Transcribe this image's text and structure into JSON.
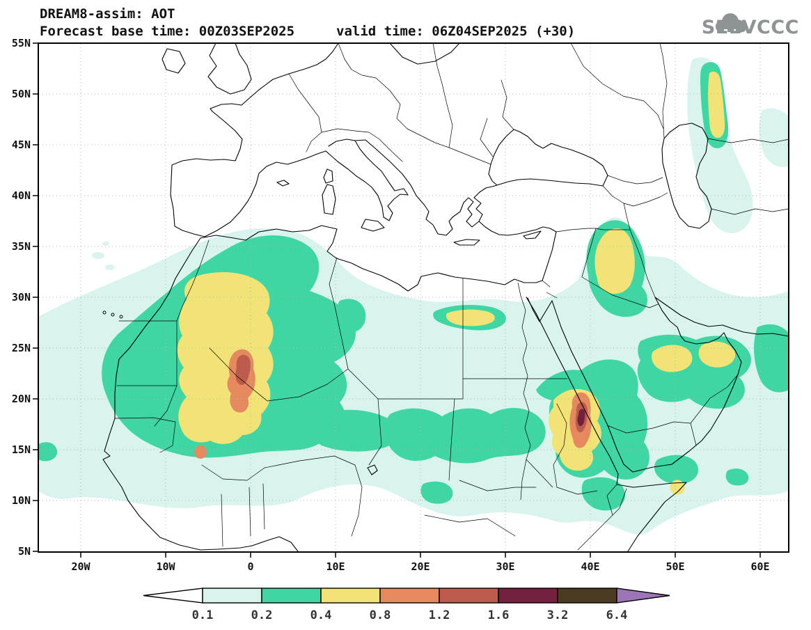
{
  "header": {
    "title": "DREAM8-assim: AOT",
    "base_time_label": "Forecast base time: 00Z03SEP2025",
    "valid_time_label": "valid time: 06Z04SEP2025 (+30)",
    "logo_text": "SEEVCCC"
  },
  "chart_data": {
    "type": "heatmap",
    "title": "DREAM8-assim: AOT",
    "model": "DREAM8-assim",
    "variable": "AOT",
    "forecast_base_time": "00Z03SEP2025",
    "valid_time": "06Z04SEP2025",
    "lead": "+30",
    "grid": "dotted",
    "legend_position": "bottom",
    "x_ticks": [
      "20W",
      "10W",
      "0",
      "10E",
      "20E",
      "30E",
      "40E",
      "50E",
      "60E"
    ],
    "y_ticks": [
      "55N",
      "50N",
      "45N",
      "40N",
      "35N",
      "30N",
      "25N",
      "20N",
      "15N",
      "10N",
      "5N"
    ],
    "lon_range_deg": [
      -25,
      63.5
    ],
    "lat_range_deg": [
      5,
      55
    ],
    "colorbar": {
      "levels": [
        "0.1",
        "0.2",
        "0.4",
        "0.8",
        "1.2",
        "1.6",
        "3.2",
        "6.4"
      ],
      "colors": [
        "#ffffff",
        "#d9f3ef",
        "#3fd6a4",
        "#f2e376",
        "#e48a5e",
        "#bb5c4d",
        "#73203e",
        "#4b3b23",
        "#9d74b5"
      ]
    },
    "features": [
      {
        "name": "West Africa / southern Algeria dust plume",
        "approx_center": "20N 4W",
        "max_band": "1.2-1.6"
      },
      {
        "name": "Sudan - Eritrea - Ethiopia / Red Sea plume",
        "approx_center": "16N 38E",
        "max_band": "1.6-3.2"
      },
      {
        "name": "Iraq / Mesopotamia plume",
        "approx_center": "33N 44E",
        "max_band": "0.4-0.8"
      },
      {
        "name": "Eastern Saudi Arabia / Gulf plume",
        "approx_center": "23N 50E",
        "max_band": "0.4-0.8"
      },
      {
        "name": "Upper Egypt band",
        "approx_center": "27N 29E",
        "max_band": "0.4-0.8"
      },
      {
        "name": "North Caspian streak",
        "approx_center": "49N 55E",
        "max_band": "0.4-0.8"
      },
      {
        "name": "Gulf of Aden spot",
        "approx_center": "12N 50E",
        "max_band": "0.4-0.8"
      },
      {
        "name": "Background 0.1-0.2 field",
        "approx_center": "Sahara / Arabia / NE Atlantic",
        "max_band": "0.1-0.2"
      }
    ]
  }
}
